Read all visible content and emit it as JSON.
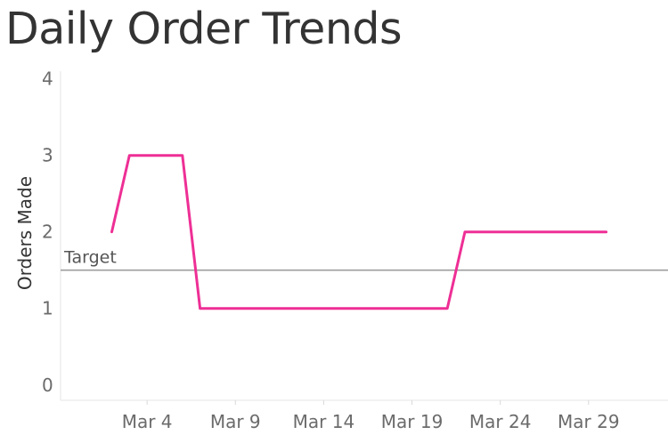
{
  "chart_data": {
    "type": "line",
    "title": "Daily Order Trends",
    "xlabel": "",
    "ylabel": "Orders Made",
    "x_tick_labels": [
      "Mar 4",
      "Mar 9",
      "Mar 14",
      "Mar 19",
      "Mar 24",
      "Mar 29"
    ],
    "x_tick_days": [
      4,
      9,
      14,
      19,
      24,
      29
    ],
    "xlim": [
      -0.9,
      33.5
    ],
    "ylim": [
      -0.2,
      4.1
    ],
    "y_ticks": [
      0,
      1,
      2,
      3,
      4
    ],
    "series": [
      {
        "x": [
          "Mar 2",
          "Mar 3",
          "Mar 4",
          "Mar 5",
          "Mar 6",
          "Mar 7",
          "Mar 8",
          "Mar 9",
          "Mar 10",
          "Mar 11",
          "Mar 12",
          "Mar 13",
          "Mar 14",
          "Mar 15",
          "Mar 16",
          "Mar 17",
          "Mar 18",
          "Mar 19",
          "Mar 20",
          "Mar 21",
          "Mar 22",
          "Mar 23",
          "Mar 24",
          "Mar 25",
          "Mar 26",
          "Mar 27",
          "Mar 28",
          "Mar 29",
          "Mar 30"
        ],
        "days": [
          2,
          3,
          4,
          5,
          6,
          7,
          8,
          9,
          10,
          11,
          12,
          13,
          14,
          15,
          16,
          17,
          18,
          19,
          20,
          21,
          22,
          23,
          24,
          25,
          26,
          27,
          28,
          29,
          30
        ],
        "values": [
          2,
          3,
          3,
          3,
          3,
          1,
          1,
          1,
          1,
          1,
          1,
          1,
          1,
          1,
          1,
          1,
          1,
          1,
          1,
          1,
          2,
          2,
          2,
          2,
          2,
          2,
          2,
          2,
          2
        ],
        "color": "#ee2f95"
      }
    ],
    "reference_line": {
      "label": "Target",
      "value": 1.5,
      "color": "#9e9e9e"
    },
    "grid": false,
    "legend": "none"
  }
}
